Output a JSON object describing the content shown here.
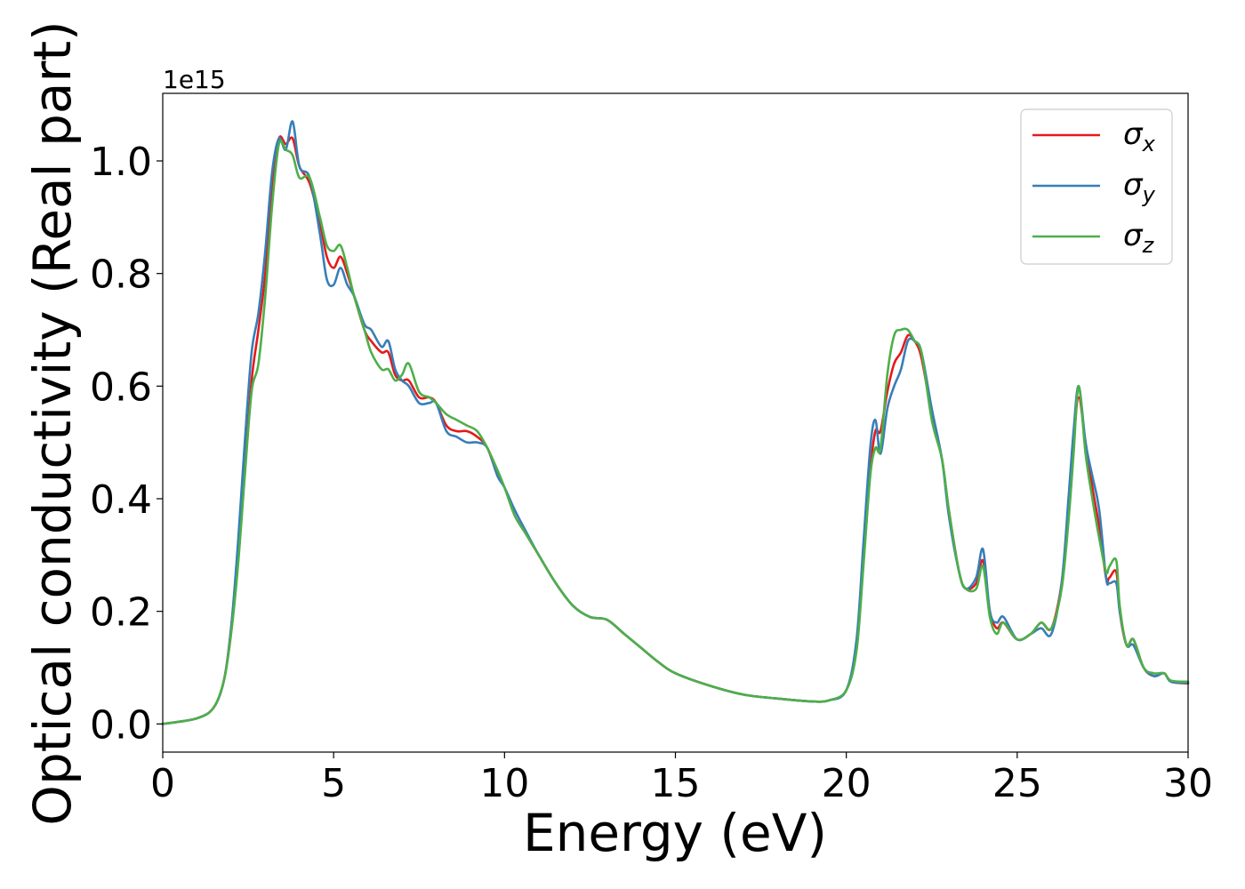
{
  "chart_data": {
    "type": "line",
    "xlabel": "Energy (eV)",
    "ylabel": "Optical conductivity (Real part)",
    "y_offset_label": "1e15",
    "xlim": [
      0,
      30
    ],
    "ylim": [
      -0.05,
      1.12
    ],
    "xticks": [
      0,
      5,
      10,
      15,
      20,
      25,
      30
    ],
    "xtick_labels": [
      "0",
      "5",
      "10",
      "15",
      "20",
      "25",
      "30"
    ],
    "yticks": [
      0.0,
      0.2,
      0.4,
      0.6,
      0.8,
      1.0
    ],
    "ytick_labels": [
      "0.0",
      "0.2",
      "0.4",
      "0.6",
      "0.8",
      "1.0"
    ],
    "grid": false,
    "legend_position": "top-right",
    "series": [
      {
        "name": "σx",
        "symbol": "σ",
        "subscript": "x",
        "color": "#e41a1c",
        "x": [
          0,
          1,
          1.5,
          1.8,
          2,
          2.2,
          2.4,
          2.6,
          2.8,
          3,
          3.2,
          3.4,
          3.6,
          3.8,
          4,
          4.3,
          4.6,
          4.8,
          5,
          5.2,
          5.4,
          5.6,
          5.9,
          6.1,
          6.4,
          6.6,
          6.8,
          7,
          7.2,
          7.5,
          7.8,
          8,
          8.3,
          8.6,
          8.9,
          9.2,
          9.5,
          9.8,
          10,
          10.3,
          10.6,
          11,
          11.5,
          12,
          12.5,
          13,
          13.5,
          14,
          14.5,
          15,
          16,
          17,
          18,
          19,
          19.5,
          20,
          20.3,
          20.5,
          20.7,
          20.85,
          21,
          21.2,
          21.4,
          21.6,
          21.8,
          22,
          22.2,
          22.5,
          22.8,
          23,
          23.3,
          23.5,
          23.8,
          24,
          24.2,
          24.4,
          24.6,
          25,
          25.4,
          25.7,
          26,
          26.3,
          26.5,
          26.65,
          26.8,
          27,
          27.2,
          27.4,
          27.6,
          27.7,
          27.9,
          28,
          28.2,
          28.4,
          28.7,
          29,
          29.3,
          29.5,
          30
        ],
        "values": [
          0,
          0.01,
          0.03,
          0.08,
          0.17,
          0.3,
          0.45,
          0.61,
          0.7,
          0.8,
          0.96,
          1.04,
          1.03,
          1.04,
          0.99,
          0.96,
          0.89,
          0.83,
          0.81,
          0.83,
          0.8,
          0.76,
          0.7,
          0.68,
          0.66,
          0.66,
          0.62,
          0.61,
          0.61,
          0.58,
          0.58,
          0.57,
          0.53,
          0.52,
          0.52,
          0.51,
          0.49,
          0.44,
          0.42,
          0.37,
          0.34,
          0.3,
          0.25,
          0.21,
          0.19,
          0.185,
          0.16,
          0.135,
          0.11,
          0.09,
          0.068,
          0.052,
          0.045,
          0.04,
          0.042,
          0.06,
          0.14,
          0.3,
          0.45,
          0.52,
          0.52,
          0.59,
          0.64,
          0.66,
          0.69,
          0.68,
          0.65,
          0.55,
          0.47,
          0.38,
          0.27,
          0.24,
          0.25,
          0.29,
          0.2,
          0.17,
          0.18,
          0.15,
          0.16,
          0.18,
          0.17,
          0.25,
          0.38,
          0.5,
          0.58,
          0.5,
          0.42,
          0.35,
          0.26,
          0.26,
          0.27,
          0.2,
          0.14,
          0.15,
          0.1,
          0.085,
          0.09,
          0.075,
          0.072
        ]
      },
      {
        "name": "σy",
        "symbol": "σ",
        "subscript": "y",
        "color": "#377eb8",
        "x": [
          0,
          1,
          1.5,
          1.8,
          2,
          2.2,
          2.4,
          2.6,
          2.8,
          3,
          3.2,
          3.4,
          3.6,
          3.8,
          4,
          4.3,
          4.6,
          4.8,
          5,
          5.2,
          5.4,
          5.6,
          5.9,
          6.1,
          6.4,
          6.6,
          6.8,
          7,
          7.2,
          7.5,
          7.8,
          8,
          8.3,
          8.6,
          8.9,
          9.2,
          9.5,
          9.8,
          10,
          10.3,
          10.6,
          11,
          11.5,
          12,
          12.5,
          13,
          13.5,
          14,
          14.5,
          15,
          16,
          17,
          18,
          19,
          19.5,
          20,
          20.3,
          20.5,
          20.7,
          20.85,
          21,
          21.2,
          21.4,
          21.6,
          21.8,
          22,
          22.2,
          22.5,
          22.8,
          23,
          23.3,
          23.5,
          23.8,
          24,
          24.2,
          24.4,
          24.6,
          25,
          25.4,
          25.7,
          26,
          26.3,
          26.5,
          26.65,
          26.8,
          27,
          27.2,
          27.4,
          27.6,
          27.7,
          27.9,
          28,
          28.2,
          28.4,
          28.7,
          29,
          29.3,
          29.5,
          30
        ],
        "values": [
          0,
          0.01,
          0.03,
          0.08,
          0.17,
          0.32,
          0.5,
          0.66,
          0.73,
          0.84,
          0.98,
          1.04,
          1.02,
          1.07,
          0.99,
          0.97,
          0.87,
          0.79,
          0.78,
          0.81,
          0.78,
          0.76,
          0.71,
          0.7,
          0.67,
          0.68,
          0.63,
          0.61,
          0.6,
          0.57,
          0.57,
          0.57,
          0.52,
          0.51,
          0.5,
          0.5,
          0.49,
          0.44,
          0.42,
          0.38,
          0.345,
          0.3,
          0.25,
          0.21,
          0.19,
          0.185,
          0.16,
          0.135,
          0.11,
          0.09,
          0.068,
          0.052,
          0.045,
          0.04,
          0.042,
          0.06,
          0.15,
          0.32,
          0.49,
          0.54,
          0.48,
          0.56,
          0.6,
          0.63,
          0.68,
          0.68,
          0.66,
          0.56,
          0.47,
          0.37,
          0.27,
          0.24,
          0.26,
          0.31,
          0.2,
          0.18,
          0.19,
          0.15,
          0.16,
          0.17,
          0.16,
          0.25,
          0.4,
          0.52,
          0.6,
          0.5,
          0.44,
          0.38,
          0.26,
          0.25,
          0.25,
          0.2,
          0.14,
          0.14,
          0.1,
          0.085,
          0.09,
          0.075,
          0.073
        ]
      },
      {
        "name": "σz",
        "symbol": "σ",
        "subscript": "z",
        "color": "#4daf4a",
        "x": [
          0,
          1,
          1.5,
          1.8,
          2,
          2.2,
          2.4,
          2.6,
          2.8,
          3,
          3.2,
          3.4,
          3.6,
          3.8,
          4,
          4.3,
          4.6,
          4.8,
          5,
          5.2,
          5.4,
          5.6,
          5.9,
          6.1,
          6.4,
          6.6,
          6.8,
          7,
          7.2,
          7.5,
          7.8,
          8,
          8.3,
          8.6,
          8.9,
          9.2,
          9.5,
          9.8,
          10,
          10.3,
          10.6,
          11,
          11.5,
          12,
          12.5,
          13,
          13.5,
          14,
          14.5,
          15,
          16,
          17,
          18,
          19,
          19.5,
          20,
          20.3,
          20.5,
          20.7,
          20.85,
          21,
          21.2,
          21.4,
          21.6,
          21.8,
          22,
          22.2,
          22.5,
          22.8,
          23,
          23.3,
          23.5,
          23.8,
          24,
          24.2,
          24.4,
          24.6,
          25,
          25.4,
          25.7,
          26,
          26.3,
          26.5,
          26.65,
          26.8,
          27,
          27.2,
          27.4,
          27.6,
          27.7,
          27.9,
          28,
          28.2,
          28.4,
          28.7,
          29,
          29.3,
          29.5,
          30
        ],
        "values": [
          0,
          0.01,
          0.03,
          0.08,
          0.16,
          0.28,
          0.44,
          0.59,
          0.64,
          0.76,
          0.92,
          1.03,
          1.02,
          1.01,
          0.97,
          0.97,
          0.9,
          0.85,
          0.84,
          0.85,
          0.81,
          0.76,
          0.7,
          0.66,
          0.63,
          0.63,
          0.61,
          0.62,
          0.64,
          0.59,
          0.58,
          0.57,
          0.55,
          0.54,
          0.53,
          0.52,
          0.49,
          0.45,
          0.42,
          0.37,
          0.34,
          0.3,
          0.25,
          0.21,
          0.19,
          0.185,
          0.16,
          0.135,
          0.11,
          0.09,
          0.068,
          0.052,
          0.045,
          0.04,
          0.042,
          0.06,
          0.13,
          0.28,
          0.44,
          0.49,
          0.49,
          0.62,
          0.69,
          0.7,
          0.7,
          0.68,
          0.66,
          0.54,
          0.47,
          0.38,
          0.27,
          0.24,
          0.24,
          0.28,
          0.19,
          0.16,
          0.18,
          0.15,
          0.16,
          0.18,
          0.17,
          0.24,
          0.36,
          0.48,
          0.6,
          0.48,
          0.4,
          0.33,
          0.27,
          0.28,
          0.29,
          0.21,
          0.14,
          0.15,
          0.1,
          0.09,
          0.09,
          0.077,
          0.075
        ]
      }
    ]
  }
}
